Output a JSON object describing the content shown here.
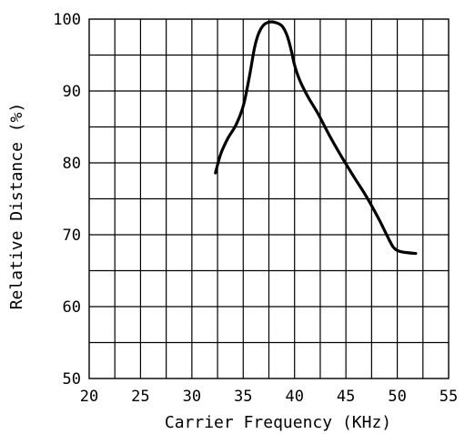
{
  "chart_data": {
    "type": "line",
    "title": "",
    "xlabel": "Carrier Frequency (KHz)",
    "ylabel": "Relative Distance (%)",
    "xlim": [
      20,
      55
    ],
    "ylim": [
      50,
      100
    ],
    "x_ticks": [
      20,
      25,
      30,
      35,
      40,
      45,
      50,
      55
    ],
    "y_ticks": [
      50,
      60,
      70,
      80,
      90,
      100
    ],
    "x_tick_labels": [
      "20",
      "25",
      "30",
      "35",
      "40",
      "45",
      "50",
      "55"
    ],
    "y_tick_labels": [
      "50",
      "60",
      "70",
      "80",
      "90",
      "100"
    ],
    "grid": true,
    "x_grid_step": 2.5,
    "y_grid_step": 5,
    "series": [
      {
        "color": "#000000",
        "x": [
          32.3,
          32.8,
          33.5,
          34.3,
          35.0,
          35.6,
          36.1,
          36.5,
          37.0,
          37.6,
          38.2,
          38.8,
          39.3,
          39.7,
          40.0,
          40.5,
          41.3,
          42.3,
          43.4,
          44.6,
          45.8,
          47.0,
          48.2,
          49.0,
          49.6,
          50.2,
          51.0,
          51.8
        ],
        "y": [
          78.6,
          81.2,
          83.4,
          85.3,
          87.9,
          92.0,
          96.0,
          98.0,
          99.2,
          99.6,
          99.5,
          99.0,
          97.6,
          95.5,
          93.6,
          91.5,
          89.2,
          86.8,
          83.8,
          80.8,
          78.0,
          75.3,
          72.2,
          69.9,
          68.3,
          67.7,
          67.5,
          67.4
        ]
      }
    ]
  }
}
